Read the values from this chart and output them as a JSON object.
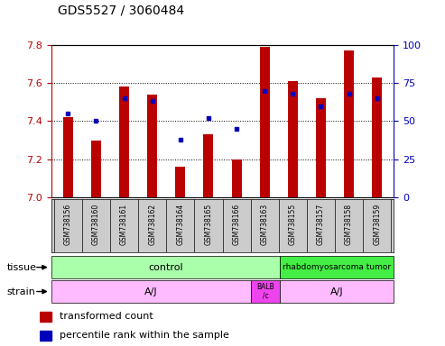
{
  "title": "GDS5527 / 3060484",
  "samples": [
    "GSM738156",
    "GSM738160",
    "GSM738161",
    "GSM738162",
    "GSM738164",
    "GSM738165",
    "GSM738166",
    "GSM738163",
    "GSM738155",
    "GSM738157",
    "GSM738158",
    "GSM738159"
  ],
  "bar_values": [
    7.42,
    7.3,
    7.58,
    7.54,
    7.16,
    7.33,
    7.2,
    7.79,
    7.61,
    7.52,
    7.77,
    7.63
  ],
  "bar_base": 7.0,
  "percentile_values": [
    55,
    50,
    65,
    63,
    38,
    52,
    45,
    70,
    68,
    60,
    68,
    65
  ],
  "ylim_left": [
    7.0,
    7.8
  ],
  "ylim_right": [
    0,
    100
  ],
  "yticks_left": [
    7.0,
    7.2,
    7.4,
    7.6,
    7.8
  ],
  "yticks_right": [
    0,
    25,
    50,
    75,
    100
  ],
  "bar_color": "#bb0000",
  "dot_color": "#0000bb",
  "bg_color": "#dddddd",
  "tissue_control_color": "#aaffaa",
  "tissue_tumor_color": "#44ee44",
  "strain_aj_color": "#ffbbff",
  "strain_balb_color": "#ee44ee",
  "tissue_groups": [
    {
      "label": "control",
      "start": 0,
      "end": 8
    },
    {
      "label": "rhabdomyosarcoma tumor",
      "start": 8,
      "end": 12
    }
  ],
  "strain_groups": [
    {
      "label": "A/J",
      "start": 0,
      "end": 7
    },
    {
      "label": "BALB\n/c",
      "start": 7,
      "end": 8
    },
    {
      "label": "A/J",
      "start": 8,
      "end": 12
    }
  ]
}
